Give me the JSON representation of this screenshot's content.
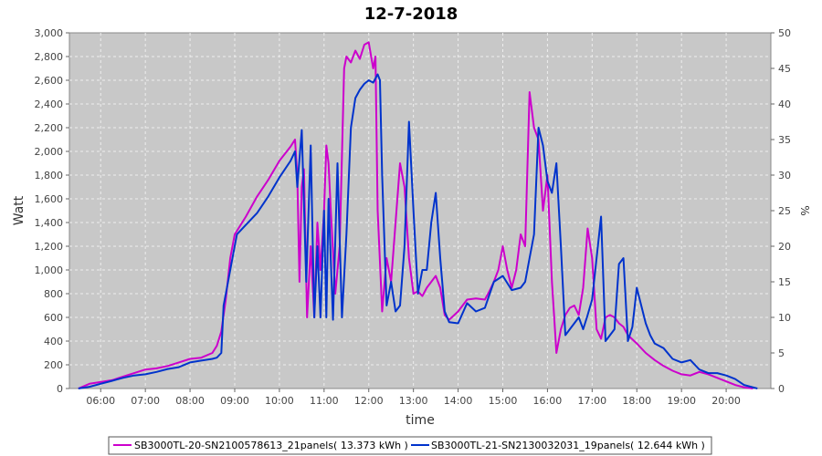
{
  "chart_data": {
    "type": "line",
    "title": "12-7-2018",
    "xlabel": "time",
    "ylabel": "Watt",
    "y2label": "%",
    "xlim": [
      5.3,
      21.0
    ],
    "ylim": [
      0,
      3000
    ],
    "y2lim": [
      0,
      50
    ],
    "x_ticks": [
      {
        "t": 6,
        "label": "06:00"
      },
      {
        "t": 7,
        "label": "07:00"
      },
      {
        "t": 8,
        "label": "08:00"
      },
      {
        "t": 9,
        "label": "09:00"
      },
      {
        "t": 10,
        "label": "10:00"
      },
      {
        "t": 11,
        "label": "11:00"
      },
      {
        "t": 12,
        "label": "12:00"
      },
      {
        "t": 13,
        "label": "13:00"
      },
      {
        "t": 14,
        "label": "14:00"
      },
      {
        "t": 15,
        "label": "15:00"
      },
      {
        "t": 16,
        "label": "16:00"
      },
      {
        "t": 17,
        "label": "17:00"
      },
      {
        "t": 18,
        "label": "18:00"
      },
      {
        "t": 19,
        "label": "19:00"
      },
      {
        "t": 20,
        "label": "20:00"
      }
    ],
    "y_ticks": [
      {
        "v": 0,
        "label": "0"
      },
      {
        "v": 200,
        "label": "200"
      },
      {
        "v": 400,
        "label": "400"
      },
      {
        "v": 600,
        "label": "600"
      },
      {
        "v": 800,
        "label": "800"
      },
      {
        "v": 1000,
        "label": "1,000"
      },
      {
        "v": 1200,
        "label": "1,200"
      },
      {
        "v": 1400,
        "label": "1,400"
      },
      {
        "v": 1600,
        "label": "1,600"
      },
      {
        "v": 1800,
        "label": "1,800"
      },
      {
        "v": 2000,
        "label": "2,000"
      },
      {
        "v": 2200,
        "label": "2,200"
      },
      {
        "v": 2400,
        "label": "2,400"
      },
      {
        "v": 2600,
        "label": "2,600"
      },
      {
        "v": 2800,
        "label": "2,800"
      },
      {
        "v": 3000,
        "label": "3,000"
      }
    ],
    "y2_ticks": [
      {
        "v": 0,
        "label": "0"
      },
      {
        "v": 5,
        "label": "5"
      },
      {
        "v": 10,
        "label": "10"
      },
      {
        "v": 15,
        "label": "15"
      },
      {
        "v": 20,
        "label": "20"
      },
      {
        "v": 25,
        "label": "25"
      },
      {
        "v": 30,
        "label": "30"
      },
      {
        "v": 35,
        "label": "35"
      },
      {
        "v": 40,
        "label": "40"
      },
      {
        "v": 45,
        "label": "45"
      },
      {
        "v": 50,
        "label": "50"
      }
    ],
    "grid": true,
    "legend_position": "bottom",
    "colors": {
      "plot_bg": "#c8c8c8",
      "grid": "#eeeeee"
    },
    "series": [
      {
        "name": "SB3000TL-20-SN2100578613_21panels( 13.373 kWh )",
        "color": "#cc00cc",
        "points": [
          [
            5.5,
            0
          ],
          [
            5.75,
            40
          ],
          [
            6.0,
            55
          ],
          [
            6.25,
            70
          ],
          [
            6.5,
            100
          ],
          [
            6.75,
            130
          ],
          [
            7.0,
            160
          ],
          [
            7.25,
            170
          ],
          [
            7.5,
            190
          ],
          [
            7.75,
            220
          ],
          [
            8.0,
            250
          ],
          [
            8.25,
            260
          ],
          [
            8.5,
            300
          ],
          [
            8.6,
            360
          ],
          [
            8.7,
            480
          ],
          [
            8.8,
            750
          ],
          [
            8.9,
            1100
          ],
          [
            9.0,
            1300
          ],
          [
            9.25,
            1450
          ],
          [
            9.5,
            1620
          ],
          [
            9.75,
            1760
          ],
          [
            10.0,
            1920
          ],
          [
            10.25,
            2040
          ],
          [
            10.35,
            2100
          ],
          [
            10.4,
            1800
          ],
          [
            10.45,
            900
          ],
          [
            10.5,
            1700
          ],
          [
            10.55,
            1850
          ],
          [
            10.62,
            600
          ],
          [
            10.7,
            1200
          ],
          [
            10.78,
            600
          ],
          [
            10.85,
            1400
          ],
          [
            10.92,
            1000
          ],
          [
            11.0,
            1500
          ],
          [
            11.05,
            2050
          ],
          [
            11.1,
            1900
          ],
          [
            11.15,
            1500
          ],
          [
            11.25,
            800
          ],
          [
            11.35,
            1200
          ],
          [
            11.45,
            2700
          ],
          [
            11.5,
            2800
          ],
          [
            11.6,
            2750
          ],
          [
            11.7,
            2850
          ],
          [
            11.8,
            2780
          ],
          [
            11.9,
            2900
          ],
          [
            12.0,
            2920
          ],
          [
            12.1,
            2700
          ],
          [
            12.15,
            2800
          ],
          [
            12.2,
            1500
          ],
          [
            12.3,
            650
          ],
          [
            12.4,
            1100
          ],
          [
            12.5,
            900
          ],
          [
            12.6,
            1400
          ],
          [
            12.7,
            1900
          ],
          [
            12.8,
            1700
          ],
          [
            12.9,
            1100
          ],
          [
            13.0,
            800
          ],
          [
            13.1,
            820
          ],
          [
            13.2,
            780
          ],
          [
            13.3,
            850
          ],
          [
            13.4,
            900
          ],
          [
            13.5,
            950
          ],
          [
            13.6,
            850
          ],
          [
            13.7,
            620
          ],
          [
            13.8,
            580
          ],
          [
            14.0,
            650
          ],
          [
            14.2,
            750
          ],
          [
            14.4,
            760
          ],
          [
            14.6,
            750
          ],
          [
            14.7,
            820
          ],
          [
            14.8,
            900
          ],
          [
            14.9,
            1000
          ],
          [
            15.0,
            1200
          ],
          [
            15.1,
            1000
          ],
          [
            15.2,
            850
          ],
          [
            15.3,
            1000
          ],
          [
            15.4,
            1300
          ],
          [
            15.5,
            1200
          ],
          [
            15.6,
            2500
          ],
          [
            15.7,
            2200
          ],
          [
            15.8,
            2100
          ],
          [
            15.9,
            1500
          ],
          [
            16.0,
            1800
          ],
          [
            16.1,
            900
          ],
          [
            16.15,
            600
          ],
          [
            16.2,
            300
          ],
          [
            16.3,
            500
          ],
          [
            16.4,
            620
          ],
          [
            16.5,
            680
          ],
          [
            16.6,
            700
          ],
          [
            16.7,
            620
          ],
          [
            16.8,
            850
          ],
          [
            16.9,
            1350
          ],
          [
            17.0,
            1100
          ],
          [
            17.1,
            500
          ],
          [
            17.2,
            420
          ],
          [
            17.3,
            600
          ],
          [
            17.4,
            620
          ],
          [
            17.5,
            600
          ],
          [
            17.6,
            550
          ],
          [
            17.7,
            520
          ],
          [
            17.8,
            450
          ],
          [
            18.0,
            380
          ],
          [
            18.2,
            300
          ],
          [
            18.4,
            240
          ],
          [
            18.6,
            190
          ],
          [
            18.8,
            150
          ],
          [
            19.0,
            120
          ],
          [
            19.2,
            110
          ],
          [
            19.4,
            140
          ],
          [
            19.6,
            120
          ],
          [
            19.8,
            90
          ],
          [
            20.0,
            60
          ],
          [
            20.2,
            30
          ],
          [
            20.4,
            10
          ],
          [
            20.6,
            0
          ]
        ]
      },
      {
        "name": "SB3000TL-21-SN2130032031_19panels( 12.644 kWh )",
        "color": "#0033cc",
        "points": [
          [
            5.5,
            0
          ],
          [
            5.75,
            15
          ],
          [
            6.0,
            40
          ],
          [
            6.25,
            65
          ],
          [
            6.5,
            90
          ],
          [
            6.75,
            110
          ],
          [
            7.0,
            120
          ],
          [
            7.25,
            140
          ],
          [
            7.5,
            165
          ],
          [
            7.75,
            180
          ],
          [
            8.0,
            220
          ],
          [
            8.25,
            235
          ],
          [
            8.5,
            250
          ],
          [
            8.6,
            260
          ],
          [
            8.7,
            300
          ],
          [
            8.75,
            700
          ],
          [
            8.85,
            900
          ],
          [
            8.95,
            1100
          ],
          [
            9.05,
            1300
          ],
          [
            9.25,
            1380
          ],
          [
            9.5,
            1480
          ],
          [
            9.75,
            1620
          ],
          [
            10.0,
            1780
          ],
          [
            10.25,
            1920
          ],
          [
            10.35,
            2000
          ],
          [
            10.4,
            1700
          ],
          [
            10.5,
            2180
          ],
          [
            10.6,
            900
          ],
          [
            10.7,
            2050
          ],
          [
            10.78,
            600
          ],
          [
            10.85,
            1200
          ],
          [
            10.92,
            600
          ],
          [
            11.0,
            1500
          ],
          [
            11.05,
            600
          ],
          [
            11.1,
            1600
          ],
          [
            11.2,
            580
          ],
          [
            11.3,
            1900
          ],
          [
            11.4,
            600
          ],
          [
            11.5,
            1300
          ],
          [
            11.6,
            2200
          ],
          [
            11.7,
            2450
          ],
          [
            11.8,
            2520
          ],
          [
            11.9,
            2570
          ],
          [
            12.0,
            2600
          ],
          [
            12.1,
            2580
          ],
          [
            12.2,
            2650
          ],
          [
            12.25,
            2600
          ],
          [
            12.3,
            1800
          ],
          [
            12.4,
            700
          ],
          [
            12.5,
            900
          ],
          [
            12.6,
            650
          ],
          [
            12.7,
            700
          ],
          [
            12.8,
            1200
          ],
          [
            12.9,
            2250
          ],
          [
            13.0,
            1500
          ],
          [
            13.1,
            800
          ],
          [
            13.2,
            1000
          ],
          [
            13.3,
            1000
          ],
          [
            13.4,
            1400
          ],
          [
            13.5,
            1650
          ],
          [
            13.6,
            1100
          ],
          [
            13.7,
            650
          ],
          [
            13.8,
            560
          ],
          [
            14.0,
            550
          ],
          [
            14.2,
            720
          ],
          [
            14.4,
            650
          ],
          [
            14.6,
            680
          ],
          [
            14.8,
            900
          ],
          [
            15.0,
            950
          ],
          [
            15.2,
            830
          ],
          [
            15.4,
            850
          ],
          [
            15.5,
            900
          ],
          [
            15.6,
            1100
          ],
          [
            15.7,
            1300
          ],
          [
            15.8,
            2200
          ],
          [
            15.9,
            2050
          ],
          [
            16.0,
            1750
          ],
          [
            16.1,
            1650
          ],
          [
            16.2,
            1900
          ],
          [
            16.3,
            1200
          ],
          [
            16.4,
            450
          ],
          [
            16.5,
            500
          ],
          [
            16.6,
            550
          ],
          [
            16.7,
            600
          ],
          [
            16.8,
            500
          ],
          [
            16.9,
            620
          ],
          [
            17.0,
            750
          ],
          [
            17.1,
            1100
          ],
          [
            17.2,
            1450
          ],
          [
            17.3,
            400
          ],
          [
            17.4,
            450
          ],
          [
            17.5,
            500
          ],
          [
            17.6,
            1050
          ],
          [
            17.7,
            1100
          ],
          [
            17.8,
            400
          ],
          [
            17.9,
            520
          ],
          [
            18.0,
            850
          ],
          [
            18.1,
            700
          ],
          [
            18.2,
            550
          ],
          [
            18.3,
            450
          ],
          [
            18.4,
            380
          ],
          [
            18.6,
            340
          ],
          [
            18.8,
            250
          ],
          [
            19.0,
            220
          ],
          [
            19.2,
            240
          ],
          [
            19.4,
            160
          ],
          [
            19.6,
            130
          ],
          [
            19.8,
            130
          ],
          [
            20.0,
            110
          ],
          [
            20.2,
            80
          ],
          [
            20.4,
            30
          ],
          [
            20.6,
            10
          ],
          [
            20.7,
            0
          ]
        ]
      }
    ]
  }
}
